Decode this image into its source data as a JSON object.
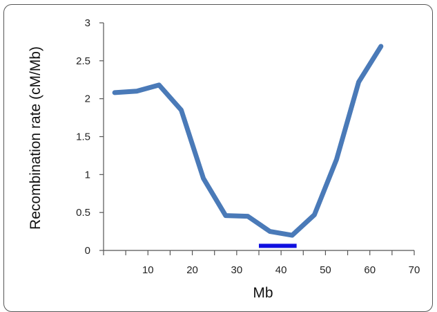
{
  "chart_data": {
    "type": "line",
    "title": "",
    "xlabel": "Mb",
    "ylabel": "Recombination rate (cM/Mb)",
    "xlim": [
      0,
      70
    ],
    "ylim": [
      0,
      3
    ],
    "x_ticks": [
      "10",
      "20",
      "30",
      "40",
      "50",
      "60",
      "70"
    ],
    "y_ticks": [
      "0",
      "0.5",
      "1",
      "1.5",
      "2",
      "2.5",
      "3"
    ],
    "grid": false,
    "series": [
      {
        "color": "#4a7ab8",
        "x": [
          2.5,
          7.5,
          12.5,
          17.5,
          22.5,
          27.5,
          32.5,
          37.5,
          42.5,
          47.5,
          52.5,
          57.5,
          62.5
        ],
        "y": [
          2.08,
          2.1,
          2.18,
          1.85,
          0.95,
          0.46,
          0.45,
          0.25,
          0.2,
          0.47,
          1.2,
          2.22,
          2.69
        ]
      }
    ],
    "annotations": [
      {
        "type": "segment",
        "color": "#1010e0",
        "x0": 35,
        "x1": 43.5,
        "y": 0.06
      }
    ]
  }
}
